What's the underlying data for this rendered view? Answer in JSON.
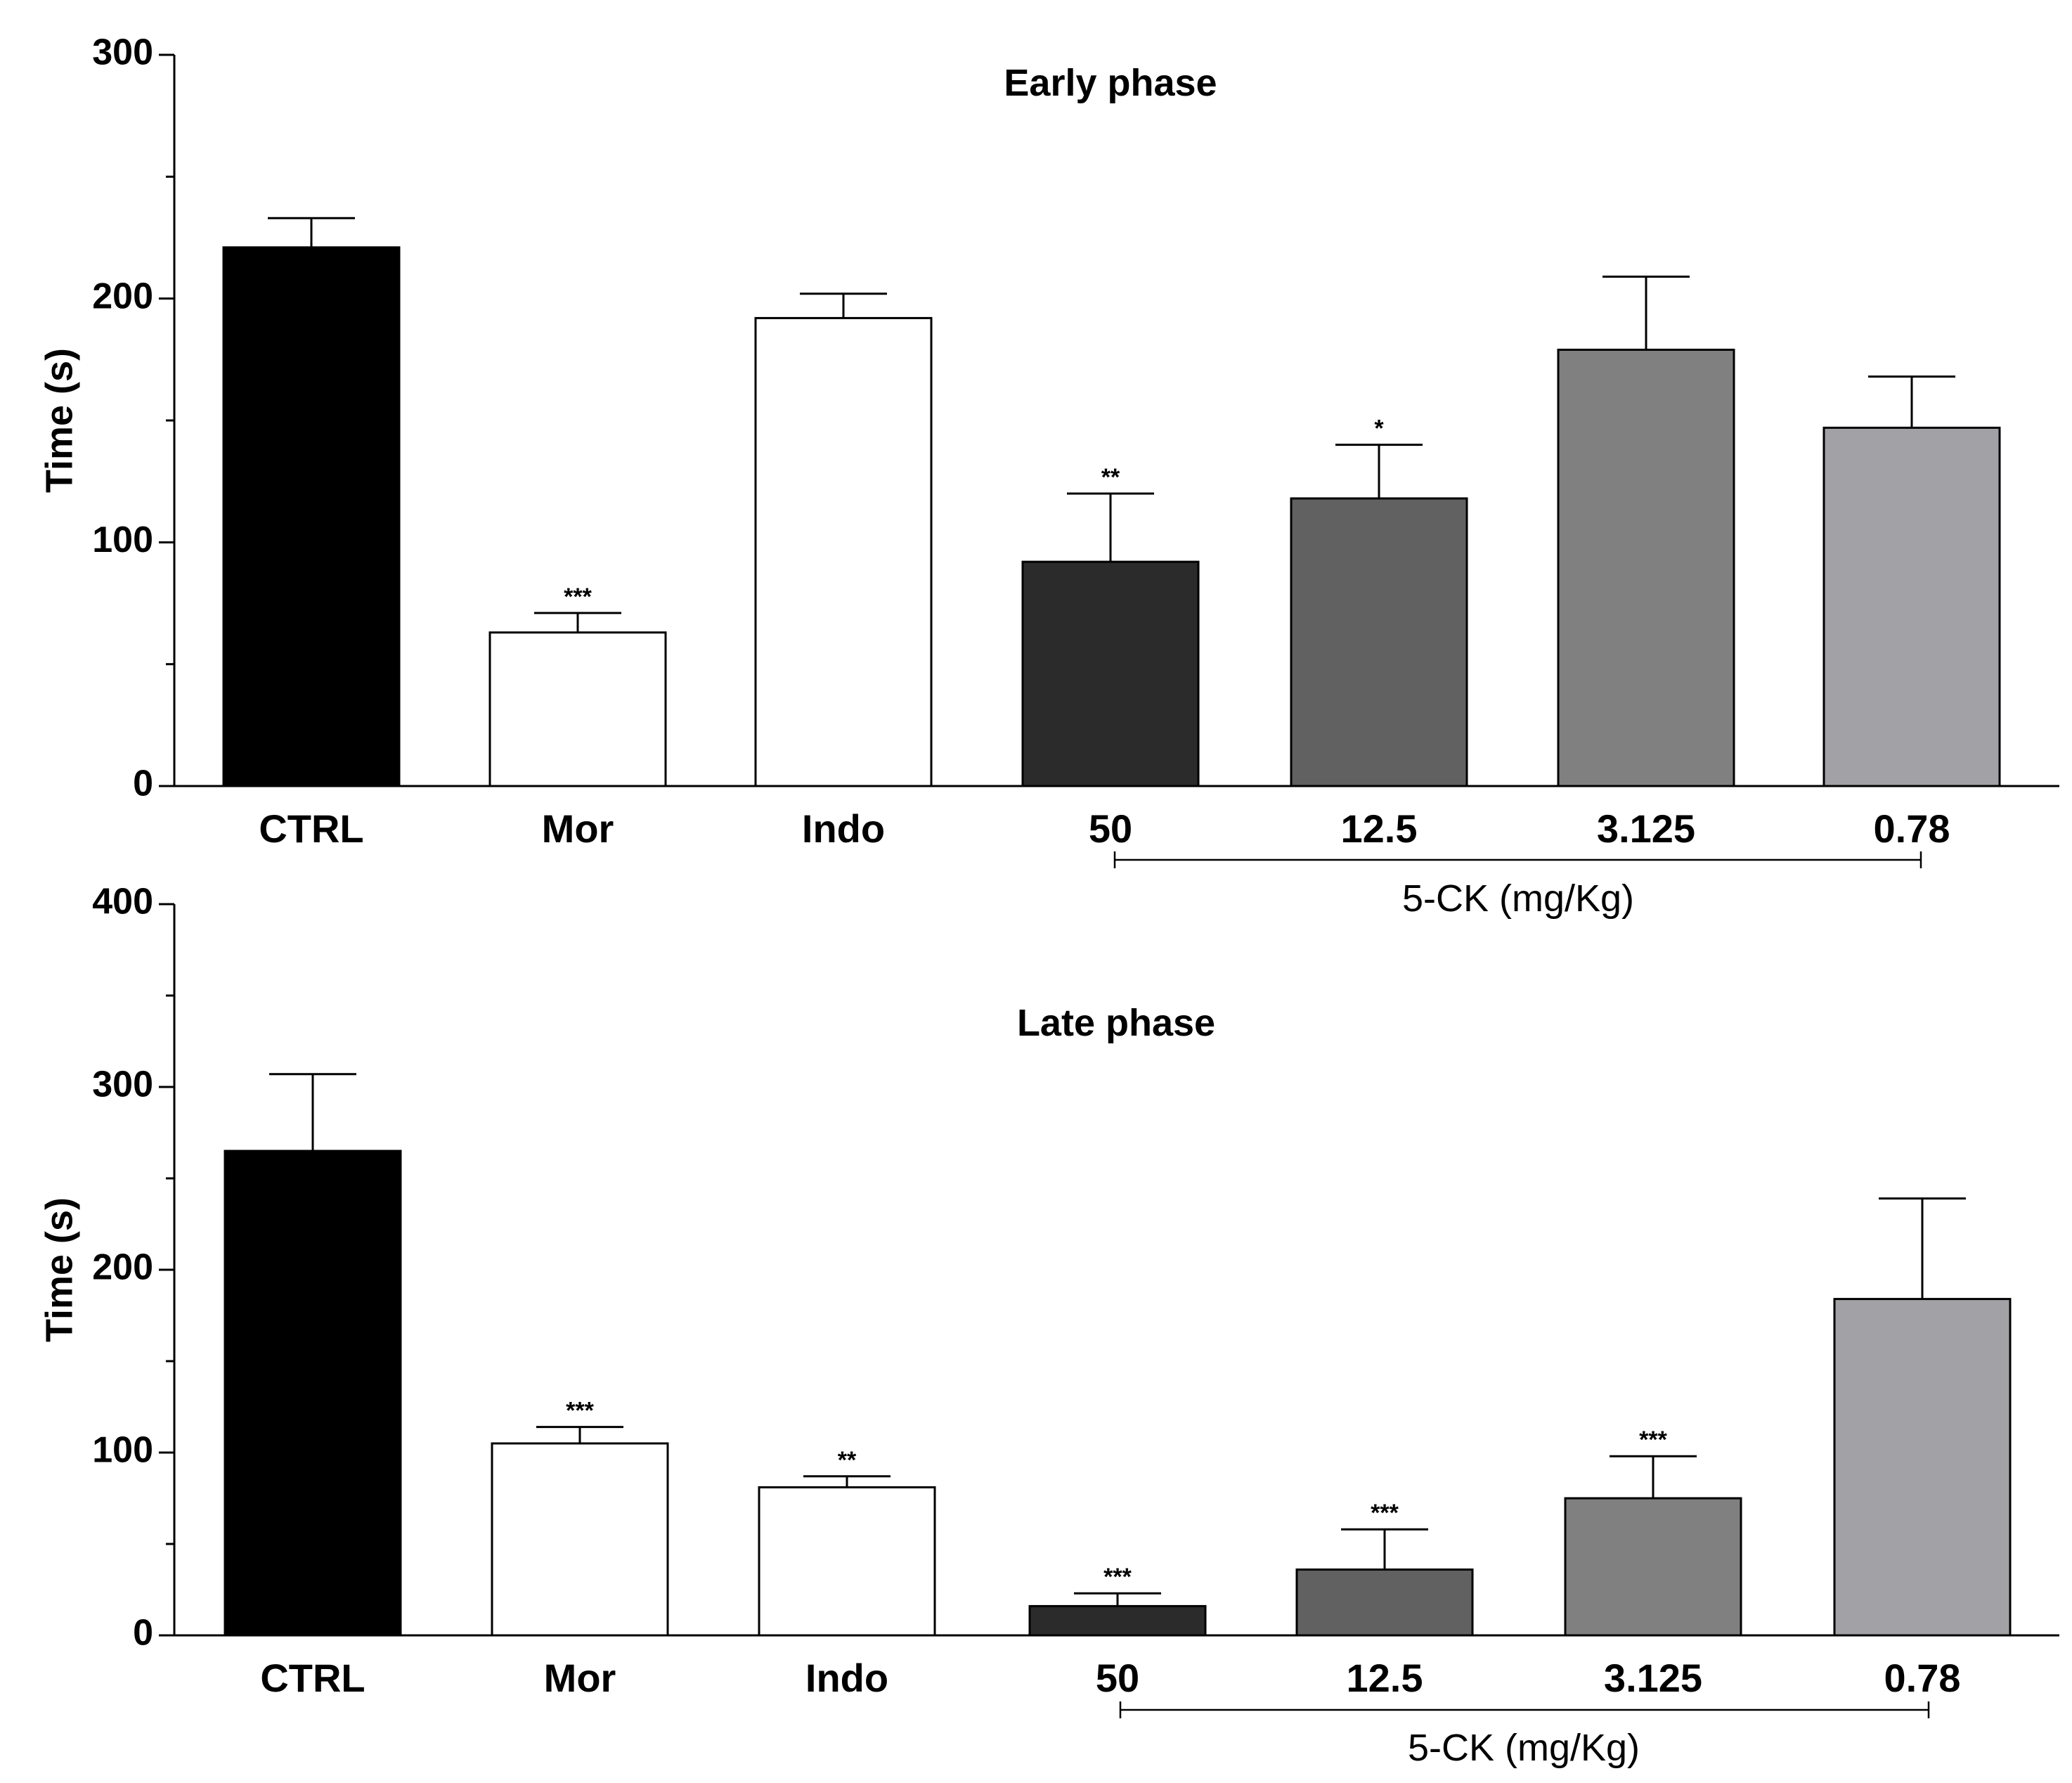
{
  "chart_data": [
    {
      "type": "bar",
      "title": "Early phase",
      "ylabel": "Time (s)",
      "xlabel": "",
      "ylim": [
        0,
        300
      ],
      "yticks": [
        0,
        100,
        200,
        300
      ],
      "categories": [
        "CTRL",
        "Mor",
        "Indo",
        "50",
        "12.5",
        "3.125",
        "0.78"
      ],
      "values": [
        221,
        63,
        192,
        92,
        118,
        179,
        147
      ],
      "errors": [
        12,
        8,
        10,
        28,
        22,
        30,
        21
      ],
      "significance": [
        "",
        "***",
        "",
        "**",
        "*",
        "",
        ""
      ],
      "colors": [
        "#000000",
        "#ffffff",
        "#ffffff",
        "#2b2b2b",
        "#616161",
        "#808080",
        "#a2a2a6"
      ],
      "group_bracket": {
        "label": "5-CK (mg/Kg)",
        "from": "50",
        "to": "0.78"
      }
    },
    {
      "type": "bar",
      "title": "Late phase",
      "ylabel": "Time (s)",
      "xlabel": "",
      "ylim": [
        0,
        400
      ],
      "yticks": [
        0,
        100,
        200,
        300,
        400
      ],
      "categories": [
        "CTRL",
        "Mor",
        "Indo",
        "50",
        "12.5",
        "3.125",
        "0.78"
      ],
      "values": [
        265,
        105,
        81,
        16,
        36,
        75,
        184
      ],
      "errors": [
        42,
        9,
        6,
        7,
        22,
        23,
        55
      ],
      "significance": [
        "",
        "***",
        "**",
        "***",
        "***",
        "***",
        ""
      ],
      "colors": [
        "#000000",
        "#ffffff",
        "#ffffff",
        "#2b2b2b",
        "#616161",
        "#808080",
        "#a2a2a6"
      ],
      "group_bracket": {
        "label": "5-CK (mg/Kg)",
        "from": "50",
        "to": "0.78"
      }
    }
  ]
}
